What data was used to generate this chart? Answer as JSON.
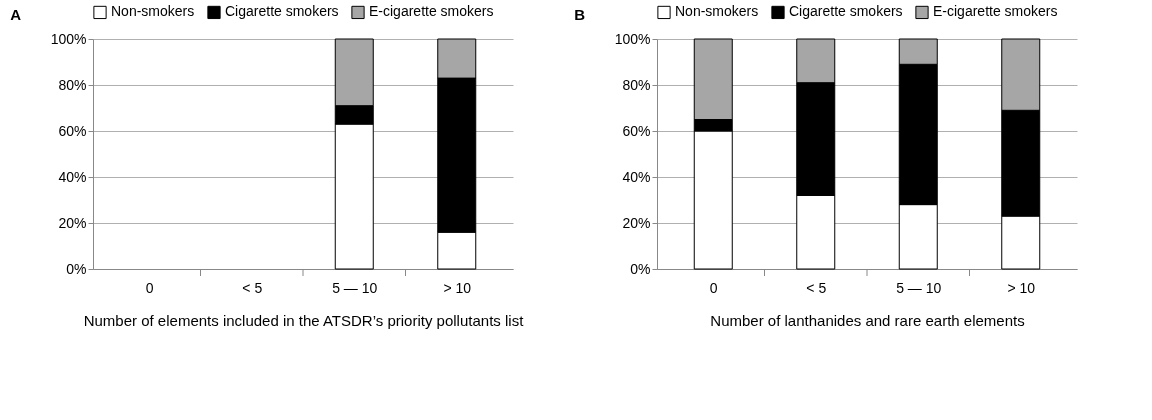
{
  "chart_data": [
    {
      "type": "bar",
      "title": "A",
      "stacked": true,
      "categories": [
        "0",
        "< 5",
        "5 — 10",
        "> 10"
      ],
      "xlabel": "Number of elements included in the ATSDR’s priority pollutants list",
      "ylim": [
        0,
        100
      ],
      "yticks": [
        {
          "value": 0,
          "label": "0%"
        },
        {
          "value": 20,
          "label": "20%"
        },
        {
          "value": 40,
          "label": "40%"
        },
        {
          "value": 60,
          "label": "60%"
        },
        {
          "value": 80,
          "label": "80%"
        },
        {
          "value": 100,
          "label": "100%"
        }
      ],
      "grid": "y",
      "legend": "top",
      "series": [
        {
          "name": "Non-smokers",
          "color": "#ffffff",
          "values": [
            null,
            null,
            63,
            16
          ]
        },
        {
          "name": "Cigarette smokers",
          "color": "#000000",
          "values": [
            null,
            null,
            8,
            67
          ]
        },
        {
          "name": "E-cigarette smokers",
          "color": "#a6a6a6",
          "values": [
            null,
            null,
            29,
            17
          ]
        }
      ]
    },
    {
      "type": "bar",
      "title": "B",
      "stacked": true,
      "categories": [
        "0",
        "< 5",
        "5 — 10",
        "> 10"
      ],
      "xlabel": "Number of lanthanides and rare earth elements",
      "ylim": [
        0,
        100
      ],
      "yticks": [
        {
          "value": 0,
          "label": "0%"
        },
        {
          "value": 20,
          "label": "20%"
        },
        {
          "value": 40,
          "label": "40%"
        },
        {
          "value": 60,
          "label": "60%"
        },
        {
          "value": 80,
          "label": "80%"
        },
        {
          "value": 100,
          "label": "100%"
        }
      ],
      "grid": "y",
      "legend": "top",
      "series": [
        {
          "name": "Non-smokers",
          "color": "#ffffff",
          "values": [
            60,
            32,
            28,
            23
          ]
        },
        {
          "name": "Cigarette smokers",
          "color": "#000000",
          "values": [
            5,
            49,
            61,
            46
          ]
        },
        {
          "name": "E-cigarette smokers",
          "color": "#a6a6a6",
          "values": [
            35,
            19,
            11,
            31
          ]
        }
      ]
    }
  ]
}
